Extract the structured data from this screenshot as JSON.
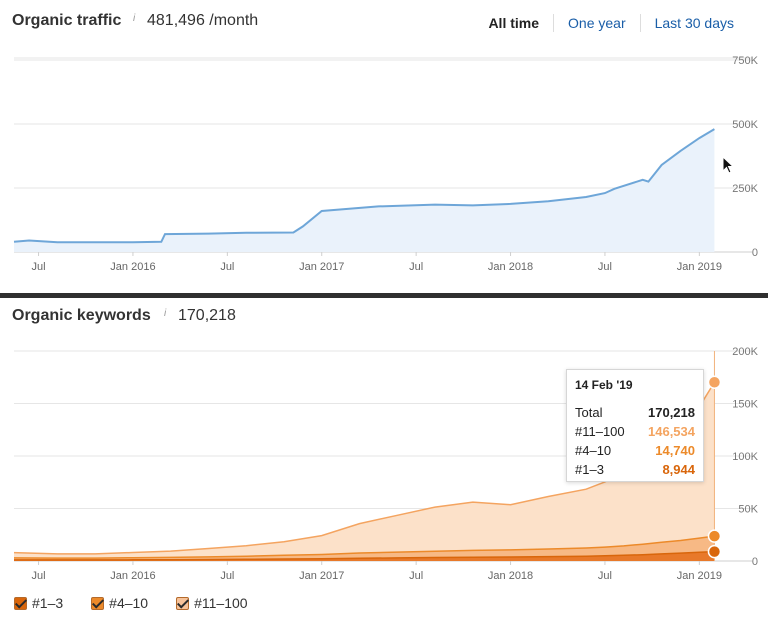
{
  "traffic": {
    "title": "Organic traffic",
    "info": "i",
    "value": "481,496 /month",
    "time_tabs": [
      "All time",
      "One year",
      "Last 30 days"
    ],
    "active_tab": 0
  },
  "keywords": {
    "title": "Organic keywords",
    "info": "i",
    "value": "170,218",
    "tooltip": {
      "date": "14 Feb '19",
      "rows": [
        {
          "label": "Total",
          "value": "170,218",
          "color": "#222222"
        },
        {
          "label": "#11–100",
          "value": "146,534",
          "color": "#f4a460"
        },
        {
          "label": "#4–10",
          "value": "14,740",
          "color": "#ec8a2a"
        },
        {
          "label": "#1–3",
          "value": "8,944",
          "color": "#d9660b"
        }
      ]
    },
    "legend": [
      {
        "label": "#1–3",
        "color": "#d9660b"
      },
      {
        "label": "#4–10",
        "color": "#ec8a2a"
      },
      {
        "label": "#11–100",
        "color": "#f7c39a"
      }
    ]
  },
  "chart_data": [
    {
      "type": "area",
      "title": "Organic traffic",
      "x_tick_labels": [
        "Jul",
        "Jan 2016",
        "Jul",
        "Jan 2017",
        "Jul",
        "Jan 2018",
        "Jul",
        "Jan 2019"
      ],
      "x_tick_dates": [
        2015.5,
        2016.0,
        2016.5,
        2017.0,
        2017.5,
        2018.0,
        2018.5,
        2019.0
      ],
      "xlim": [
        2015.37,
        2019.12
      ],
      "y_tick_labels": [
        "750K",
        "500K",
        "250K",
        "0"
      ],
      "y_tick_values": [
        750000,
        500000,
        250000,
        0
      ],
      "ylim": [
        0,
        750000
      ],
      "grid": true,
      "color": "#6ea6d8",
      "fill": "#eaf2fb",
      "x": [
        2015.37,
        2015.45,
        2015.6,
        2015.8,
        2016.0,
        2016.15,
        2016.17,
        2016.4,
        2016.6,
        2016.85,
        2016.9,
        2017.0,
        2017.3,
        2017.6,
        2017.8,
        2018.0,
        2018.2,
        2018.4,
        2018.5,
        2018.55,
        2018.7,
        2018.73,
        2018.8,
        2018.9,
        2019.0,
        2019.08
      ],
      "y": [
        40000,
        45000,
        38000,
        38000,
        38000,
        40000,
        70000,
        72000,
        75000,
        76000,
        100000,
        160000,
        178000,
        185000,
        182000,
        188000,
        198000,
        215000,
        230000,
        247000,
        282000,
        275000,
        340000,
        395000,
        445000,
        480000
      ]
    },
    {
      "type": "area",
      "title": "Organic keywords",
      "x_tick_labels": [
        "Jul",
        "Jan 2016",
        "Jul",
        "Jan 2017",
        "Jul",
        "Jan 2018",
        "Jul",
        "Jan 2019"
      ],
      "x_tick_dates": [
        2015.5,
        2016.0,
        2016.5,
        2017.0,
        2017.5,
        2018.0,
        2018.5,
        2019.0
      ],
      "xlim": [
        2015.37,
        2019.12
      ],
      "y_tick_labels": [
        "200K",
        "150K",
        "100K",
        "50K",
        "0"
      ],
      "y_tick_values": [
        200000,
        150000,
        100000,
        50000,
        0
      ],
      "ylim": [
        0,
        200000
      ],
      "grid": true,
      "x": [
        2015.37,
        2015.6,
        2015.8,
        2016.0,
        2016.2,
        2016.4,
        2016.6,
        2016.8,
        2017.0,
        2017.2,
        2017.4,
        2017.6,
        2017.8,
        2018.0,
        2018.2,
        2018.4,
        2018.5,
        2018.6,
        2018.7,
        2018.8,
        2018.9,
        2019.0,
        2019.08
      ],
      "series": [
        {
          "name": "#11–100",
          "color": "#f4a460",
          "fill": "#fce1c9",
          "values": [
            5000,
            4000,
            4000,
            5000,
            6000,
            8000,
            10000,
            13000,
            18000,
            28000,
            35000,
            42000,
            46000,
            43000,
            50000,
            56000,
            62000,
            70000,
            80000,
            95000,
            110000,
            125000,
            146534
          ]
        },
        {
          "name": "#4–10",
          "color": "#ec8a2a",
          "fill": "#f7b985",
          "values": [
            2000,
            1800,
            1800,
            2000,
            2200,
            2500,
            3000,
            3500,
            4000,
            5000,
            5500,
            6000,
            6500,
            6800,
            7200,
            7800,
            8200,
            9000,
            10000,
            11000,
            12000,
            13500,
            14740
          ]
        },
        {
          "name": "#1–3",
          "color": "#d9660b",
          "fill": "#e8792a",
          "values": [
            1000,
            1000,
            1000,
            1100,
            1200,
            1400,
            1600,
            1900,
            2200,
            2600,
            3000,
            3300,
            3600,
            3800,
            4200,
            4600,
            5000,
            5400,
            6000,
            6800,
            7500,
            8300,
            8944
          ]
        }
      ]
    }
  ]
}
